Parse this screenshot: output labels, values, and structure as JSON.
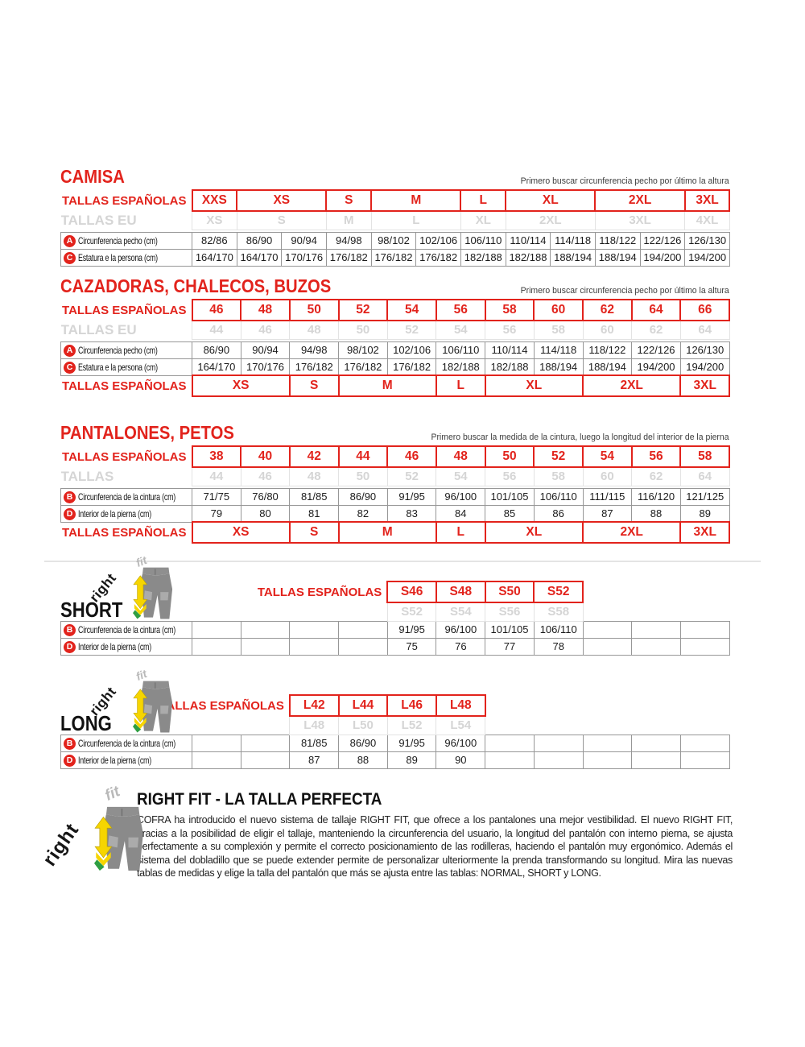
{
  "colors": {
    "red": "#e2231c",
    "gray_text": "#d5d5d5",
    "yellow": "#f6d500",
    "green": "#2f9e42",
    "pants_gray": "#8f8f8f"
  },
  "camisa": {
    "title": "CAMISA",
    "note": "Primero buscar circunferencia pecho por último la altura",
    "es_label": "TALLAS ESPAÑOLAS",
    "eu_label": "TALLAS EU",
    "es_row": [
      {
        "t": "XXS",
        "s": 1
      },
      {
        "t": "XS",
        "s": 2
      },
      {
        "t": "S",
        "s": 1
      },
      {
        "t": "M",
        "s": 2
      },
      {
        "t": "L",
        "s": 1
      },
      {
        "t": "XL",
        "s": 2
      },
      {
        "t": "2XL",
        "s": 2
      },
      {
        "t": "3XL",
        "s": 1
      }
    ],
    "eu_row": [
      {
        "t": "XS",
        "s": 1
      },
      {
        "t": "S",
        "s": 2
      },
      {
        "t": "M",
        "s": 1
      },
      {
        "t": "L",
        "s": 2
      },
      {
        "t": "XL",
        "s": 1
      },
      {
        "t": "2XL",
        "s": 2
      },
      {
        "t": "3XL",
        "s": 2
      },
      {
        "t": "4XL",
        "s": 1
      }
    ],
    "row_a": {
      "badge": "A",
      "label": "Circunferencia pecho (cm)",
      "values": [
        "82/86",
        "86/90",
        "90/94",
        "94/98",
        "98/102",
        "102/106",
        "106/110",
        "110/114",
        "114/118",
        "118/122",
        "122/126",
        "126/130"
      ]
    },
    "row_c": {
      "badge": "C",
      "label": "Estatura e la persona (cm)",
      "values": [
        "164/170",
        "164/170",
        "170/176",
        "176/182",
        "176/182",
        "176/182",
        "182/188",
        "182/188",
        "188/194",
        "188/194",
        "194/200",
        "194/200"
      ]
    }
  },
  "cazadoras": {
    "title": "CAZADORAS, CHALECOS, BUZOS",
    "note": "Primero buscar circunferencia pecho por último la altura",
    "es_label": "TALLAS ESPAÑOLAS",
    "eu_label": "TALLAS EU",
    "es_row": [
      "46",
      "48",
      "50",
      "52",
      "54",
      "56",
      "58",
      "60",
      "62",
      "64",
      "66"
    ],
    "eu_row": [
      "44",
      "46",
      "48",
      "50",
      "52",
      "54",
      "56",
      "58",
      "60",
      "62",
      "64"
    ],
    "row_a": {
      "badge": "A",
      "label": "Circunferencia pecho (cm)",
      "values": [
        "86/90",
        "90/94",
        "94/98",
        "98/102",
        "102/106",
        "106/110",
        "110/114",
        "114/118",
        "118/122",
        "122/126",
        "126/130"
      ]
    },
    "row_c": {
      "badge": "C",
      "label": "Estatura e la persona (cm)",
      "values": [
        "164/170",
        "170/176",
        "176/182",
        "176/182",
        "176/182",
        "182/188",
        "182/188",
        "188/194",
        "188/194",
        "194/200",
        "194/200"
      ]
    },
    "bottom_label": "TALLAS ESPAÑOLAS",
    "bottom_row": [
      {
        "t": "XS",
        "s": 2
      },
      {
        "t": "S",
        "s": 1
      },
      {
        "t": "M",
        "s": 2
      },
      {
        "t": "L",
        "s": 1
      },
      {
        "t": "XL",
        "s": 2
      },
      {
        "t": "2XL",
        "s": 2
      },
      {
        "t": "3XL",
        "s": 1
      }
    ]
  },
  "pantalones": {
    "title": "PANTALONES, PETOS",
    "note": "Primero buscar la medida de la cintura, luego la longitud del interior de la pierna",
    "es_label": "TALLAS ESPAÑOLAS",
    "eu_label": "TALLAS",
    "es_row": [
      "38",
      "40",
      "42",
      "44",
      "46",
      "48",
      "50",
      "52",
      "54",
      "56",
      "58"
    ],
    "eu_row": [
      "44",
      "46",
      "48",
      "50",
      "52",
      "54",
      "56",
      "58",
      "60",
      "62",
      "64"
    ],
    "row_b": {
      "badge": "B",
      "label": "Circunferencia de la cintura (cm)",
      "values": [
        "71/75",
        "76/80",
        "81/85",
        "86/90",
        "91/95",
        "96/100",
        "101/105",
        "106/110",
        "111/115",
        "116/120",
        "121/125"
      ]
    },
    "row_d": {
      "badge": "D",
      "label": "Interior de la pierna (cm)",
      "values": [
        "79",
        "80",
        "81",
        "82",
        "83",
        "84",
        "85",
        "86",
        "87",
        "88",
        "89"
      ]
    },
    "bottom_label": "TALLAS ESPAÑOLAS",
    "bottom_row": [
      {
        "t": "XS",
        "s": 2
      },
      {
        "t": "S",
        "s": 1
      },
      {
        "t": "M",
        "s": 2
      },
      {
        "t": "L",
        "s": 1
      },
      {
        "t": "XL",
        "s": 2
      },
      {
        "t": "2XL",
        "s": 2
      },
      {
        "t": "3XL",
        "s": 1
      }
    ]
  },
  "short": {
    "heading": "SHORT",
    "es_label": "TALLAS ESPAÑOLAS",
    "logo": {
      "right": "right",
      "fit": "fit"
    },
    "es_row": [
      {
        "t": "S46",
        "c": "red"
      },
      {
        "t": "S48",
        "c": "red"
      },
      {
        "t": "S50",
        "c": "red"
      },
      {
        "t": "S52",
        "c": "red"
      },
      {
        "t": "",
        "c": "none"
      },
      {
        "t": "",
        "c": "none"
      },
      {
        "t": "",
        "c": "none"
      }
    ],
    "eu_row": [
      {
        "t": "S52",
        "c": "gray"
      },
      {
        "t": "S54",
        "c": "gray"
      },
      {
        "t": "S56",
        "c": "gray"
      },
      {
        "t": "S58",
        "c": "gray"
      },
      {
        "t": "",
        "c": "none"
      },
      {
        "t": "",
        "c": "none"
      },
      {
        "t": "",
        "c": "none"
      }
    ],
    "row_b": {
      "badge": "B",
      "label": "Circunferencia de la cintura (cm)",
      "values": [
        "",
        "",
        "",
        "",
        "91/95",
        "96/100",
        "101/105",
        "106/110",
        "",
        "",
        ""
      ]
    },
    "row_d": {
      "badge": "D",
      "label": "Interior de la pierna (cm)",
      "values": [
        "",
        "",
        "",
        "",
        "75",
        "76",
        "77",
        "78",
        "",
        "",
        ""
      ]
    }
  },
  "long": {
    "heading": "LONG",
    "es_label": "TALLAS ESPAÑOLAS",
    "logo": {
      "right": "right",
      "fit": "fit"
    },
    "es_row": [
      {
        "t": "L42",
        "c": "red"
      },
      {
        "t": "L44",
        "c": "red"
      },
      {
        "t": "L46",
        "c": "red"
      },
      {
        "t": "L48",
        "c": "red"
      },
      {
        "t": "",
        "c": "none"
      },
      {
        "t": "",
        "c": "none"
      },
      {
        "t": "",
        "c": "none"
      },
      {
        "t": "",
        "c": "none"
      },
      {
        "t": "",
        "c": "none"
      }
    ],
    "eu_row": [
      {
        "t": "L48",
        "c": "gray"
      },
      {
        "t": "L50",
        "c": "gray"
      },
      {
        "t": "L52",
        "c": "gray"
      },
      {
        "t": "L54",
        "c": "gray"
      },
      {
        "t": "",
        "c": "none"
      },
      {
        "t": "",
        "c": "none"
      },
      {
        "t": "",
        "c": "none"
      },
      {
        "t": "",
        "c": "none"
      },
      {
        "t": "",
        "c": "none"
      }
    ],
    "row_b": {
      "badge": "B",
      "label": "Circunferencia de la cintura (cm)",
      "values": [
        "",
        "",
        "81/85",
        "86/90",
        "91/95",
        "96/100",
        "",
        "",
        "",
        "",
        ""
      ]
    },
    "row_d": {
      "badge": "D",
      "label": "Interior de la pierna (cm)",
      "values": [
        "",
        "",
        "87",
        "88",
        "89",
        "90",
        "",
        "",
        "",
        "",
        ""
      ]
    }
  },
  "rightfit": {
    "logo": {
      "right": "right",
      "fit": "fit"
    },
    "title": "RIGHT FIT - LA TALLA PERFECTA",
    "paragraph": "COFRA ha introducido el nuevo sistema de tallaje RIGHT FIT, que ofrece a los pantalones una mejor vestibilidad. El nuevo RIGHT FIT, gracias a la posibilidad de eligir el tallaje, manteniendo la circunferencia del usuario, la longitud del pantalón con interno pierna, se ajusta perfectamente a su complexión y permite el correcto posicionamiento de las rodilleras, haciendo el pantalón muy ergonómico. Además el sistema del dobladillo que se puede extender permite de personalizar ulteriormente la prenda transformando su longitud. Mira las nuevas tablas de medidas y elige la talla del pantalón que más se ajusta entre las tablas: NORMAL, SHORT y LONG."
  }
}
